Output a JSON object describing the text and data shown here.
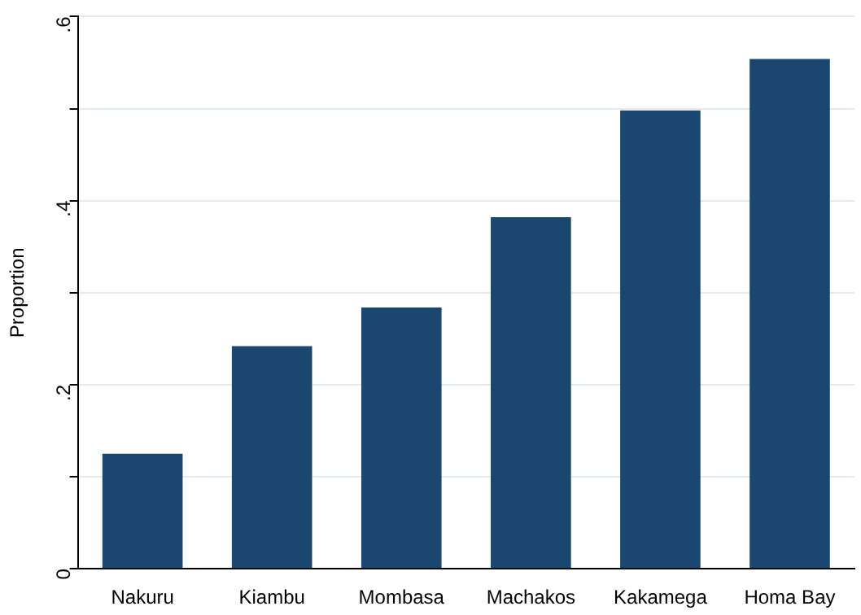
{
  "chart_data": {
    "type": "bar",
    "ylabel": "Proportion",
    "categories": [
      "Nakuru",
      "Kiambu",
      "Mombasa",
      "Machakos",
      "Kakamega",
      "Homa Bay"
    ],
    "values": [
      0.125,
      0.242,
      0.284,
      0.382,
      0.498,
      0.554
    ],
    "color": "#1a476f",
    "ylim": [
      0,
      0.6
    ],
    "yticks": [
      0,
      {
        "value": 0.1,
        "label": null
      },
      {
        "value": 0.2,
        "label": ".2"
      },
      {
        "value": 0.3,
        "label": null
      },
      {
        "value": 0.4,
        "label": ".4"
      },
      {
        "value": 0.5,
        "label": null
      },
      {
        "value": 0.6,
        "label": ".6"
      }
    ],
    "grid": true,
    "legend": false
  }
}
